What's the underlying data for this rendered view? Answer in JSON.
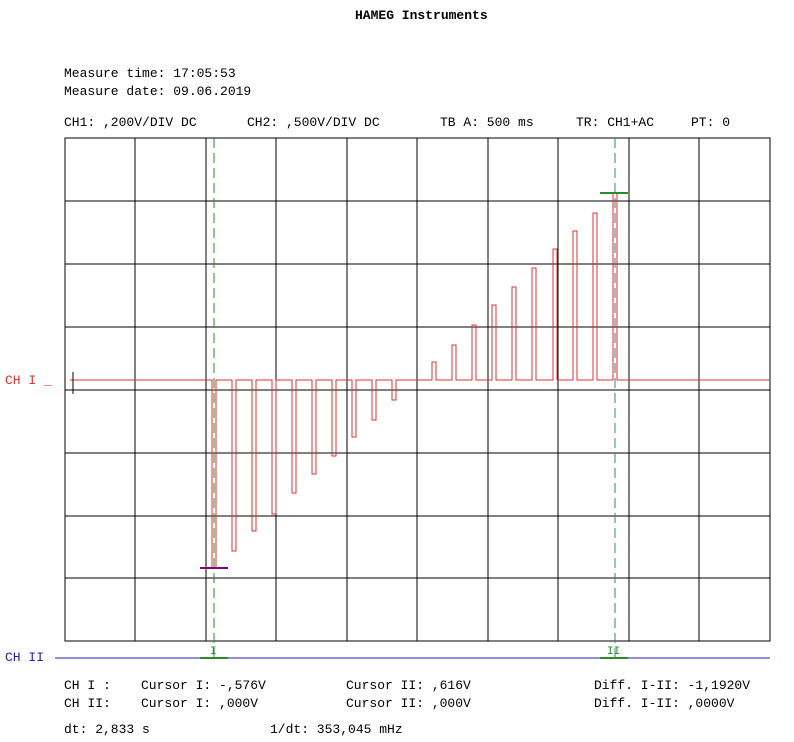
{
  "header": {
    "title": "HAMEG Instruments",
    "measure_time": "Measure time: 17:05:53",
    "measure_date": "Measure date: 09.06.2019"
  },
  "settings": {
    "ch1": "CH1: ,200V/DIV DC",
    "ch2": "CH2: ,500V/DIV DC",
    "timebase": "TB A: 500 ms",
    "trigger": "TR: CH1+AC",
    "pt": "PT: 0"
  },
  "screen": {
    "ch1_label": "CH I _",
    "ch2_label": "CH II",
    "cursor1_label": "I",
    "cursor2_label": "II"
  },
  "readout": {
    "rows": [
      [
        "CH I :",
        "Cursor I: -,576V",
        "Cursor II: ,616V",
        "Diff. I-II: -1,1920V"
      ],
      [
        "CH II:",
        "Cursor I: ,000V",
        "Cursor II: ,000V",
        "Diff. I-II: ,0000V"
      ]
    ],
    "dt": "dt: 2,833 s",
    "inv_dt": "1/dt: 353,045 mHz"
  }
}
